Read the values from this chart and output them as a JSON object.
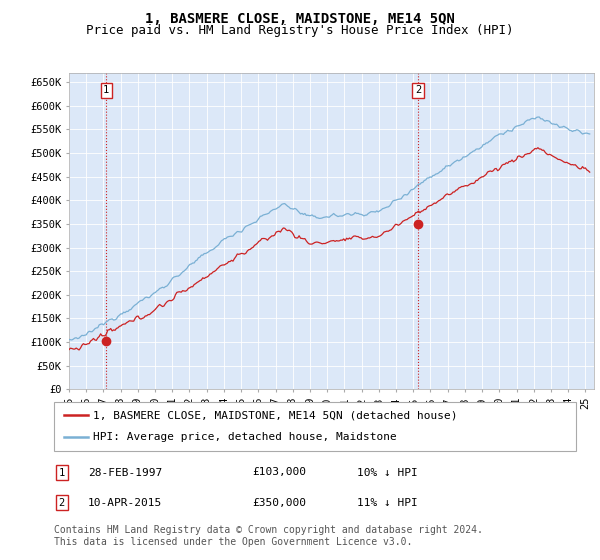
{
  "title": "1, BASMERE CLOSE, MAIDSTONE, ME14 5QN",
  "subtitle": "Price paid vs. HM Land Registry's House Price Index (HPI)",
  "background_color": "#ffffff",
  "plot_bg_color": "#dce8f8",
  "line1_color": "#cc2222",
  "line2_color": "#7ab0d4",
  "marker_color": "#cc2222",
  "dashed_line_color": "#cc2222",
  "ylim": [
    0,
    670000
  ],
  "yticks": [
    0,
    50000,
    100000,
    150000,
    200000,
    250000,
    300000,
    350000,
    400000,
    450000,
    500000,
    550000,
    600000,
    650000
  ],
  "ytick_labels": [
    "£0",
    "£50K",
    "£100K",
    "£150K",
    "£200K",
    "£250K",
    "£300K",
    "£350K",
    "£400K",
    "£450K",
    "£500K",
    "£550K",
    "£600K",
    "£650K"
  ],
  "xlim_start": 1995.0,
  "xlim_end": 2025.5,
  "purchase1_year": 1997.167,
  "purchase1_price": 103000,
  "purchase2_year": 2015.27,
  "purchase2_price": 350000,
  "legend_line1": "1, BASMERE CLOSE, MAIDSTONE, ME14 5QN (detached house)",
  "legend_line2": "HPI: Average price, detached house, Maidstone",
  "table_row1": [
    "1",
    "28-FEB-1997",
    "£103,000",
    "10% ↓ HPI"
  ],
  "table_row2": [
    "2",
    "10-APR-2015",
    "£350,000",
    "11% ↓ HPI"
  ],
  "footnote": "Contains HM Land Registry data © Crown copyright and database right 2024.\nThis data is licensed under the Open Government Licence v3.0.",
  "title_fontsize": 10,
  "subtitle_fontsize": 9,
  "tick_fontsize": 7.5,
  "legend_fontsize": 8,
  "table_fontsize": 8
}
